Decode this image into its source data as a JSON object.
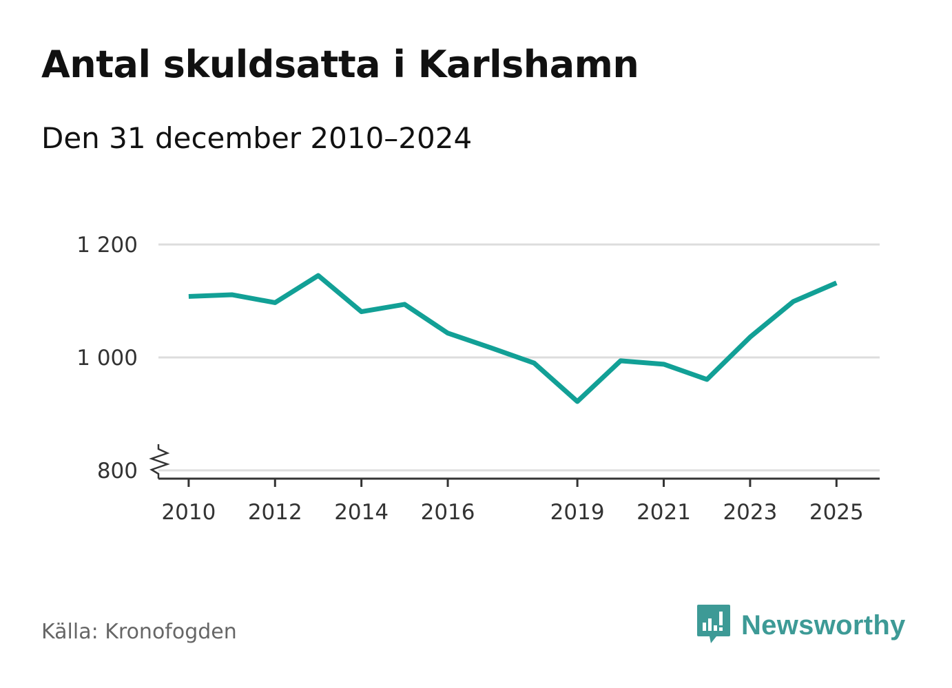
{
  "title": "Antal skuldsatta i Karlshamn",
  "subtitle": "Den 31 december 2010–2024",
  "source": "Källa: Kronofogden",
  "brand": {
    "name": "Newsworthy",
    "icon": "newsworthy-logo-icon",
    "color": "#3d9a96"
  },
  "chart_data": {
    "type": "line",
    "x": [
      2010,
      2011,
      2012,
      2013,
      2014,
      2015,
      2016,
      2017,
      2018,
      2019,
      2020,
      2021,
      2022,
      2023,
      2024,
      2025
    ],
    "series": [
      {
        "color": "#12a096",
        "values": [
          1108,
          1111,
          1097,
          1145,
          1081,
          1094,
          1043,
          1017,
          990,
          922,
          994,
          988,
          961,
          1036,
          1099,
          1132
        ]
      }
    ],
    "x_ticks": [
      {
        "value": 2010,
        "label": "2010"
      },
      {
        "value": 2012,
        "label": "2012"
      },
      {
        "value": 2014,
        "label": "2014"
      },
      {
        "value": 2016,
        "label": "2016"
      },
      {
        "value": 2019,
        "label": "2019"
      },
      {
        "value": 2021,
        "label": "2021"
      },
      {
        "value": 2023,
        "label": "2023"
      },
      {
        "value": 2025,
        "label": "2025"
      }
    ],
    "y_ticks": [
      {
        "value": 800,
        "label": "800"
      },
      {
        "value": 1000,
        "label": "1 000"
      },
      {
        "value": 1200,
        "label": "1 200"
      }
    ],
    "xlim": [
      2009.3,
      2026.0
    ],
    "ylim": [
      800,
      1200
    ],
    "y_axis_break": true,
    "grid": true,
    "gridline_color": "#dddddd",
    "axis_color": "#333333"
  }
}
